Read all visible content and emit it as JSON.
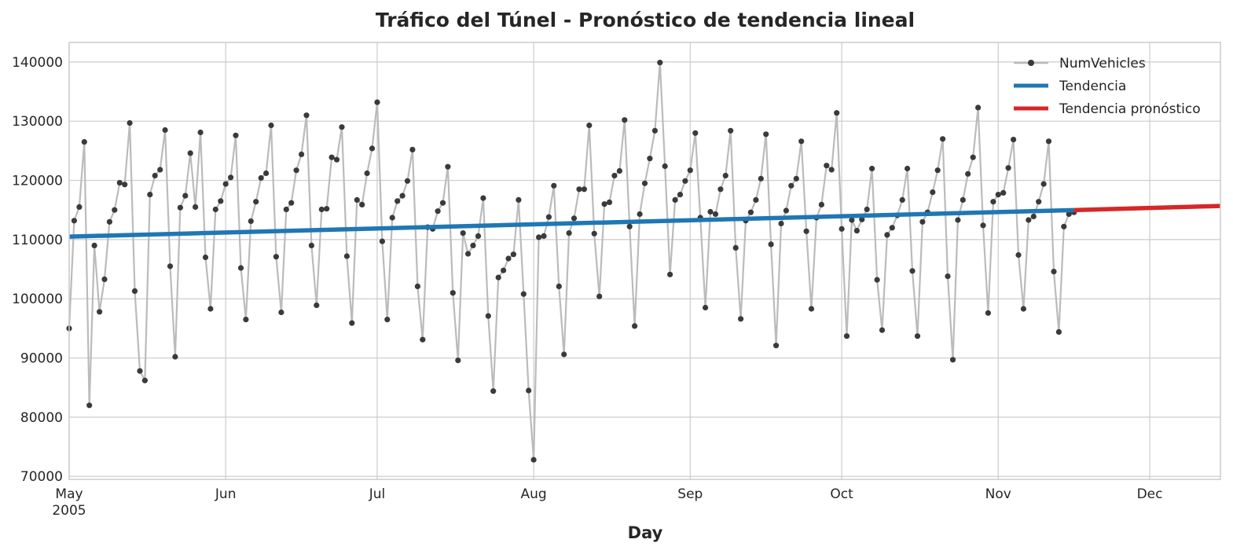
{
  "chart_data": {
    "type": "line",
    "title": "Tráfico del Túnel - Pronóstico de tendencia lineal",
    "xlabel": "Day",
    "ylabel": "",
    "x_start": "2005-05-01",
    "xlim": [
      "2005-05-01",
      "2005-12-15"
    ],
    "ylim": [
      69500,
      143300
    ],
    "yticks": [
      70000,
      80000,
      90000,
      100000,
      110000,
      120000,
      130000,
      140000
    ],
    "xticks": [
      {
        "date": "2005-05-01",
        "label": "May",
        "sublabel": "2005"
      },
      {
        "date": "2005-06-01",
        "label": "Jun",
        "sublabel": ""
      },
      {
        "date": "2005-07-01",
        "label": "Jul",
        "sublabel": ""
      },
      {
        "date": "2005-08-01",
        "label": "Aug",
        "sublabel": ""
      },
      {
        "date": "2005-09-01",
        "label": "Sep",
        "sublabel": ""
      },
      {
        "date": "2005-10-01",
        "label": "Oct",
        "sublabel": ""
      },
      {
        "date": "2005-11-01",
        "label": "Nov",
        "sublabel": ""
      },
      {
        "date": "2005-12-01",
        "label": "Dec",
        "sublabel": ""
      }
    ],
    "grid": true,
    "legend_position": "top-right",
    "series": [
      {
        "name": "NumVehicles",
        "color": "#bbbbbb",
        "marker_color": "#3a3a3a",
        "values": [
          95000,
          113200,
          115500,
          126500,
          82000,
          109000,
          97800,
          103300,
          113000,
          115000,
          119600,
          119300,
          129700,
          101300,
          87800,
          86200,
          117600,
          120800,
          121800,
          128500,
          105500,
          90200,
          115400,
          117400,
          124600,
          115500,
          128100,
          107000,
          98300,
          115100,
          116500,
          119400,
          120500,
          127600,
          105200,
          96500,
          113100,
          116400,
          120400,
          121200,
          129300,
          107100,
          97700,
          115100,
          116200,
          121700,
          124400,
          131000,
          109000,
          98900,
          115100,
          115200,
          123900,
          123500,
          129000,
          107200,
          95900,
          116700,
          115900,
          121200,
          125400,
          133200,
          109700,
          96500,
          113700,
          116500,
          117400,
          119900,
          125200,
          102100,
          93100,
          112100,
          111800,
          114800,
          116200,
          122300,
          101000,
          89600,
          111100,
          107600,
          109000,
          110600,
          117000,
          97100,
          84400,
          103600,
          104800,
          106800,
          107500,
          116700,
          100800,
          84500,
          72800,
          110400,
          110600,
          113800,
          119100,
          102100,
          90600,
          111100,
          113600,
          118500,
          118500,
          129300,
          111000,
          100400,
          116000,
          116300,
          120800,
          121600,
          130200,
          112200,
          95400,
          114300,
          119500,
          123700,
          128400,
          139900,
          122400,
          104100,
          116700,
          117600,
          119900,
          121700,
          128000,
          113700,
          98500,
          114700,
          114300,
          118500,
          120800,
          128400,
          108600,
          96600,
          113200,
          114600,
          116700,
          120300,
          127800,
          109200,
          92100,
          112700,
          114900,
          119100,
          120300,
          126600,
          111400,
          98300,
          113700,
          115900,
          122500,
          121800,
          131400,
          111800,
          93700,
          113300,
          111500,
          113400,
          115100,
          122000,
          103200,
          94700,
          110800,
          112000,
          114100,
          116700,
          122000,
          104700,
          93700,
          113000,
          114600,
          118000,
          121700,
          127000,
          103800,
          89700,
          113300,
          116700,
          121100,
          123900,
          132300,
          112400,
          97600,
          116400,
          117600,
          117900,
          122100,
          126900,
          107400,
          98300,
          113300,
          113900,
          116400,
          119400,
          126600,
          104600,
          94400,
          112200,
          114300,
          114600
        ]
      },
      {
        "name": "Tendencia",
        "color": "#1f77b4",
        "x_range": [
          "2005-05-01",
          "2005-11-16"
        ],
        "values_linear": [
          110500,
          114980
        ]
      },
      {
        "name": "Tendencia pronóstico",
        "color": "#d62728",
        "x_range": [
          "2005-11-16",
          "2005-12-15"
        ],
        "values_linear": [
          114980,
          115680
        ]
      }
    ]
  }
}
